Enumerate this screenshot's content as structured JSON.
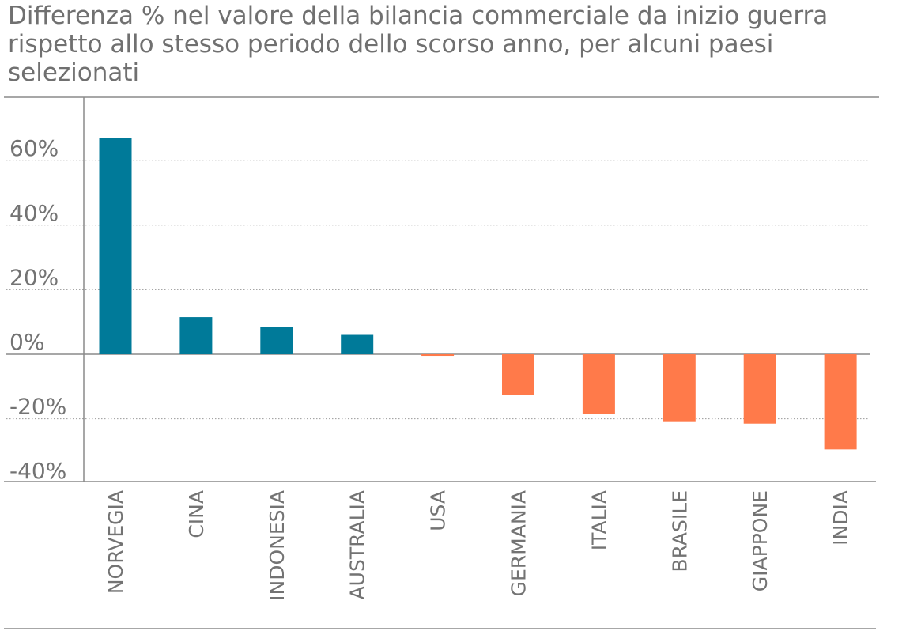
{
  "chart_data": {
    "type": "bar",
    "title": "Differenza % nel valore della bilancia commerciale da inizio guerra rispetto allo stesso periodo dello scorso anno, per alcuni paesi selezionati",
    "categories": [
      "NORVEGIA",
      "CINA",
      "INDONESIA",
      "AUSTRALIA",
      "USA",
      "GERMANIA",
      "ITALIA",
      "BRASILE",
      "GIAPPONE",
      "INDIA"
    ],
    "values": [
      67,
      11.5,
      8.5,
      6,
      -0.5,
      -12.5,
      -18.5,
      -21,
      -21.5,
      -29.5
    ],
    "yticks": [
      "60%",
      "40%",
      "20%",
      "0%",
      "-20%",
      "-40%"
    ],
    "ytick_values": [
      60,
      40,
      20,
      0,
      -20,
      -40
    ],
    "ylim": [
      -40,
      80
    ],
    "xlabel": "",
    "ylabel": "",
    "grid": true,
    "colors": {
      "positive": "#007a99",
      "negative": "#ff7a4a"
    }
  }
}
